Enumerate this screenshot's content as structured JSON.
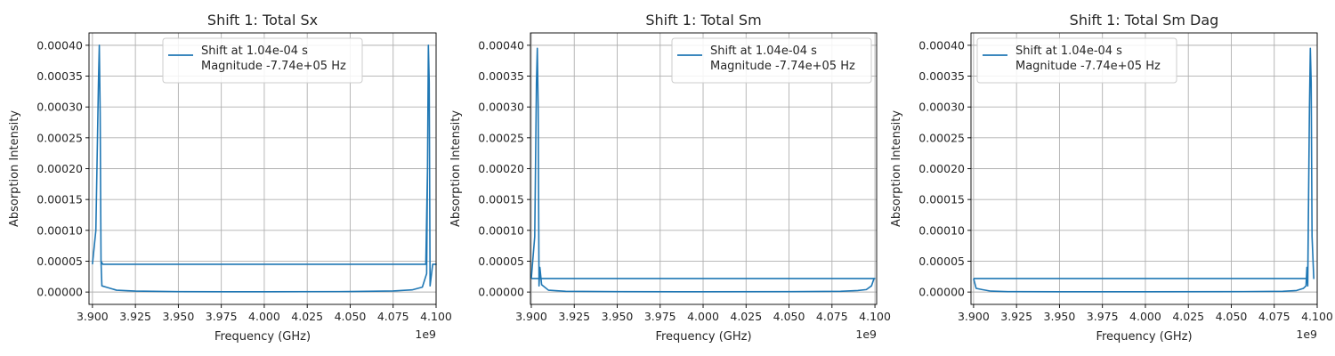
{
  "chart_data": [
    {
      "type": "line",
      "title": "Shift 1: Total Sx",
      "xlabel": "Frequency (GHz)",
      "ylabel": "Absorption Intensity",
      "x_offset_label": "1e9",
      "x_tick_labels": [
        "3.900",
        "3.925",
        "3.950",
        "3.975",
        "4.000",
        "4.025",
        "4.050",
        "4.075",
        "4.100"
      ],
      "y_tick_labels": [
        "0.00000",
        "0.00005",
        "0.00010",
        "0.00015",
        "0.00020",
        "0.00025",
        "0.00030",
        "0.00035",
        "0.00040"
      ],
      "xlim": [
        3.898,
        4.1
      ],
      "ylim": [
        -2e-05,
        0.00042
      ],
      "grid": true,
      "legend_position": "upper center",
      "color": "#1f77b4",
      "series": [
        {
          "name": "Shift at 1.04e-04 s\nMagnitude -7.74e+05 Hz",
          "x": [
            3.9,
            3.902,
            3.9035,
            3.904,
            3.9045,
            3.905,
            3.9055,
            3.908,
            3.914,
            3.925,
            3.95,
            4.0,
            4.05,
            4.075,
            4.086,
            4.092,
            4.0945,
            4.095,
            4.0955,
            4.096,
            4.0965,
            4.098,
            4.1,
            4.098,
            4.0965,
            4.096,
            4.0955,
            4.095,
            4.094,
            4.05,
            4.0,
            3.95,
            3.906,
            3.905,
            3.9045,
            3.904,
            3.9035,
            3.902,
            3.9
          ],
          "y": [
            4.5e-05,
            0.0001,
            0.00034,
            0.0004,
            0.00029,
            5e-05,
            1e-05,
            8e-06,
            3e-06,
            1.5e-06,
            7e-07,
            4e-07,
            8e-07,
            1.8e-06,
            3.5e-06,
            8e-06,
            3e-05,
            0.0002,
            0.0004,
            0.00034,
            1e-05,
            4.5e-05,
            4.5e-05,
            4.5e-05,
            1e-05,
            0.00034,
            0.0004,
            0.0002,
            4.5e-05,
            4.5e-05,
            4.5e-05,
            4.5e-05,
            4.5e-05,
            5e-05,
            0.00029,
            0.0004,
            0.00034,
            0.0001,
            4.5e-05
          ]
        }
      ]
    },
    {
      "type": "line",
      "title": "Shift 1: Total Sm",
      "xlabel": "Frequency (GHz)",
      "ylabel": "Absorption Intensity",
      "x_offset_label": "1e9",
      "x_tick_labels": [
        "3.900",
        "3.925",
        "3.950",
        "3.975",
        "4.000",
        "4.025",
        "4.050",
        "4.075",
        "4.100"
      ],
      "y_tick_labels": [
        "0.00000",
        "0.00005",
        "0.00010",
        "0.00015",
        "0.00020",
        "0.00025",
        "0.00030",
        "0.00035",
        "0.00040"
      ],
      "xlim": [
        3.8995,
        4.101
      ],
      "ylim": [
        -2e-05,
        0.00042
      ],
      "grid": true,
      "legend_position": "upper right",
      "color": "#1f77b4",
      "series": [
        {
          "name": "Shift at 1.04e-04 s\nMagnitude -7.74e+05 Hz",
          "x": [
            3.9,
            3.902,
            3.903,
            3.9035,
            3.904,
            3.9045,
            3.905,
            3.906,
            3.91,
            3.92,
            3.95,
            4.0,
            4.05,
            4.08,
            4.09,
            4.095,
            4.098,
            4.0995,
            4.1,
            4.1,
            4.0,
            3.95,
            3.9045,
            3.9
          ],
          "y": [
            2.2e-05,
            9e-05,
            0.00034,
            0.000395,
            0.0003,
            1e-05,
            4e-05,
            1.2e-05,
            3e-06,
            1.2e-06,
            6e-07,
            4e-07,
            6e-07,
            1.2e-06,
            2.5e-06,
            4e-06,
            1e-05,
            2.2e-05,
            2.2e-05,
            2.2e-05,
            2.2e-05,
            2.2e-05,
            2.2e-05,
            2.2e-05
          ]
        }
      ]
    },
    {
      "type": "line",
      "title": "Shift 1: Total Sm Dag",
      "xlabel": "Frequency (GHz)",
      "ylabel": "Absorption Intensity",
      "x_offset_label": "1e9",
      "x_tick_labels": [
        "3.900",
        "3.925",
        "3.950",
        "3.975",
        "4.000",
        "4.025",
        "4.050",
        "4.075",
        "4.100"
      ],
      "y_tick_labels": [
        "0.00000",
        "0.00005",
        "0.00010",
        "0.00015",
        "0.00020",
        "0.00025",
        "0.00030",
        "0.00035",
        "0.00040"
      ],
      "xlim": [
        3.8985,
        4.1
      ],
      "ylim": [
        -2e-05,
        0.00042
      ],
      "grid": true,
      "legend_position": "upper left",
      "color": "#1f77b4",
      "series": [
        {
          "name": "Shift at 1.04e-04 s\nMagnitude -7.74e+05 Hz",
          "x": [
            3.9,
            3.9015,
            3.905,
            3.91,
            3.92,
            3.95,
            4.0,
            4.05,
            4.08,
            4.088,
            4.092,
            4.0935,
            4.094,
            4.0945,
            4.0955,
            4.096,
            4.0965,
            4.097,
            4.098,
            4.097,
            4.0965,
            4.096,
            4.0955,
            4.0945,
            4.05,
            4.0,
            3.95,
            3.9
          ],
          "y": [
            2.2e-05,
            6e-06,
            4e-06,
            1.5e-06,
            7e-07,
            4e-07,
            4e-07,
            6e-07,
            1.2e-06,
            2.5e-06,
            6e-06,
            1e-05,
            4e-05,
            1e-05,
            0.0003,
            0.000395,
            0.00034,
            9e-05,
            2.2e-05,
            9e-05,
            0.00034,
            0.000395,
            0.0003,
            2.2e-05,
            2.2e-05,
            2.2e-05,
            2.2e-05,
            2.2e-05
          ]
        }
      ]
    }
  ]
}
